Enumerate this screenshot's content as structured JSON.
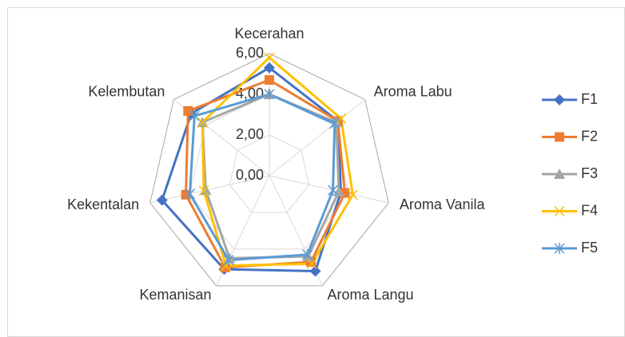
{
  "chart_data": {
    "type": "radar",
    "categories": [
      "Kecerahan",
      "Aroma Labu",
      "Aroma Vanila",
      "Aroma Langu",
      "Kemanisan",
      "Kekentalan",
      "Kelembutan"
    ],
    "ylim": [
      0,
      6
    ],
    "yticks": [
      {
        "value": 0,
        "label": "0,00"
      },
      {
        "value": 2,
        "label": "2,00"
      },
      {
        "value": 4,
        "label": "4,00"
      },
      {
        "value": 6,
        "label": "6,00"
      }
    ],
    "grid": true,
    "legend": "right",
    "series": [
      {
        "name": "F1",
        "color": "#4472c4",
        "marker": "diamond",
        "values": [
          5.3,
          4.3,
          3.6,
          5.2,
          5.1,
          5.4,
          4.9
        ]
      },
      {
        "name": "F2",
        "color": "#ed7d31",
        "marker": "square",
        "values": [
          4.7,
          4.3,
          3.8,
          4.7,
          5.0,
          4.2,
          5.1
        ]
      },
      {
        "name": "F3",
        "color": "#a5a5a5",
        "marker": "triangle",
        "values": [
          4.0,
          4.2,
          3.5,
          4.4,
          4.5,
          3.2,
          4.2
        ]
      },
      {
        "name": "F4",
        "color": "#ffc000",
        "marker": "x",
        "values": [
          5.8,
          4.5,
          4.2,
          4.8,
          4.9,
          3.3,
          4.2
        ]
      },
      {
        "name": "F5",
        "color": "#5b9bd5",
        "marker": "asterisk",
        "values": [
          4.0,
          4.1,
          3.2,
          4.3,
          4.6,
          4.0,
          4.7
        ]
      }
    ]
  }
}
